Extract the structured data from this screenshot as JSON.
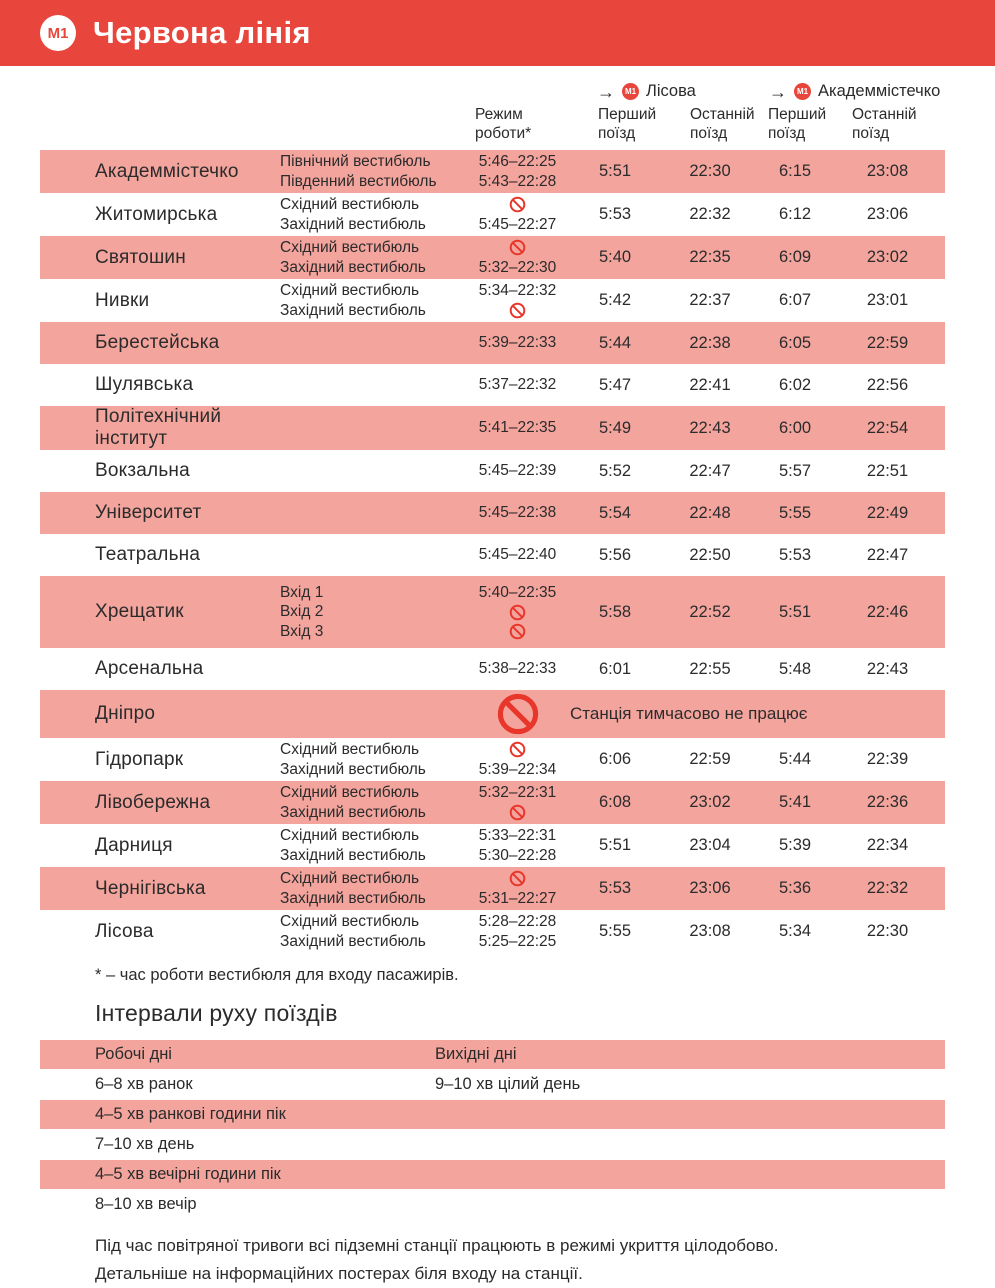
{
  "header": {
    "line_badge": "M1",
    "title": "Червона лінія"
  },
  "colors": {
    "accent_red": "#E8463C",
    "row_pink": "#F3A49D",
    "icon_red": "#E8362B",
    "text": "#2B2B2B"
  },
  "table": {
    "col_headers": {
      "rezhym": "Режим\nроботи*",
      "first": "Перший\nпоїзд",
      "last": "Останній\nпоїзд",
      "dir1": {
        "badge": "M1",
        "label": "Лісова",
        "arrow": "→"
      },
      "dir2": {
        "badge": "M1",
        "label": "Академмістечко",
        "arrow": "→"
      }
    },
    "closed_note": "Станція тимчасово не працює",
    "rows": [
      {
        "station": "Академмістечко",
        "highlight": true,
        "vestibules": [
          {
            "name": "Північний вестибюль",
            "time": "5:46–22:25"
          },
          {
            "name": "Південний вестибюль",
            "time": "5:43–22:28"
          }
        ],
        "times": [
          "5:51",
          "22:30",
          "6:15",
          "23:08"
        ]
      },
      {
        "station": "Житомирська",
        "highlight": false,
        "vestibules": [
          {
            "name": "Східний вестибюль",
            "time": null
          },
          {
            "name": "Західний вестибюль",
            "time": "5:45–22:27"
          }
        ],
        "times": [
          "5:53",
          "22:32",
          "6:12",
          "23:06"
        ]
      },
      {
        "station": "Святошин",
        "highlight": true,
        "vestibules": [
          {
            "name": "Східний вестибюль",
            "time": null
          },
          {
            "name": "Західний вестибюль",
            "time": "5:32–22:30"
          }
        ],
        "times": [
          "5:40",
          "22:35",
          "6:09",
          "23:02"
        ]
      },
      {
        "station": "Нивки",
        "highlight": false,
        "vestibules": [
          {
            "name": "Східний вестибюль",
            "time": "5:34–22:32"
          },
          {
            "name": "Західний вестибюль",
            "time": null
          }
        ],
        "times": [
          "5:42",
          "22:37",
          "6:07",
          "23:01"
        ]
      },
      {
        "station": "Берестейська",
        "highlight": true,
        "vestibules": [],
        "rezhym": "5:39–22:33",
        "times": [
          "5:44",
          "22:38",
          "6:05",
          "22:59"
        ]
      },
      {
        "station": "Шулявська",
        "highlight": false,
        "vestibules": [],
        "rezhym": "5:37–22:32",
        "times": [
          "5:47",
          "22:41",
          "6:02",
          "22:56"
        ]
      },
      {
        "station": "Політехнічний інститут",
        "highlight": true,
        "vestibules": [],
        "rezhym": "5:41–22:35",
        "times": [
          "5:49",
          "22:43",
          "6:00",
          "22:54"
        ]
      },
      {
        "station": "Вокзальна",
        "highlight": false,
        "vestibules": [],
        "rezhym": "5:45–22:39",
        "times": [
          "5:52",
          "22:47",
          "5:57",
          "22:51"
        ]
      },
      {
        "station": "Університет",
        "highlight": true,
        "vestibules": [],
        "rezhym": "5:45–22:38",
        "times": [
          "5:54",
          "22:48",
          "5:55",
          "22:49"
        ]
      },
      {
        "station": "Театральна",
        "highlight": false,
        "vestibules": [],
        "rezhym": "5:45–22:40",
        "times": [
          "5:56",
          "22:50",
          "5:53",
          "22:47"
        ]
      },
      {
        "station": "Хрещатик",
        "highlight": true,
        "size": "tall",
        "vestibules": [
          {
            "name": "Вхід 1",
            "time": "5:40–22:35"
          },
          {
            "name": "Вхід 2",
            "time": null
          },
          {
            "name": "Вхід 3",
            "time": null
          }
        ],
        "times": [
          "5:58",
          "22:52",
          "5:51",
          "22:46"
        ]
      },
      {
        "station": "Арсенальна",
        "highlight": false,
        "vestibules": [],
        "rezhym": "5:38–22:33",
        "times": [
          "6:01",
          "22:55",
          "5:48",
          "22:43"
        ]
      },
      {
        "station": "Дніпро",
        "highlight": true,
        "size": "mid",
        "closed_station": true
      },
      {
        "station": "Гідропарк",
        "highlight": false,
        "vestibules": [
          {
            "name": "Східний вестибюль",
            "time": null
          },
          {
            "name": "Західний вестибюль",
            "time": "5:39–22:34"
          }
        ],
        "times": [
          "6:06",
          "22:59",
          "5:44",
          "22:39"
        ]
      },
      {
        "station": "Лівобережна",
        "highlight": true,
        "vestibules": [
          {
            "name": "Східний вестибюль",
            "time": "5:32–22:31"
          },
          {
            "name": "Західний вестибюль",
            "time": null
          }
        ],
        "times": [
          "6:08",
          "23:02",
          "5:41",
          "22:36"
        ]
      },
      {
        "station": "Дарниця",
        "highlight": false,
        "vestibules": [
          {
            "name": "Східний вестибюль",
            "time": "5:33–22:31"
          },
          {
            "name": "Західний вестибюль",
            "time": "5:30–22:28"
          }
        ],
        "times": [
          "5:51",
          "23:04",
          "5:39",
          "22:34"
        ]
      },
      {
        "station": "Чернігівська",
        "highlight": true,
        "vestibules": [
          {
            "name": "Східний вестибюль",
            "time": null
          },
          {
            "name": "Західний вестибюль",
            "time": "5:31–22:27"
          }
        ],
        "times": [
          "5:53",
          "23:06",
          "5:36",
          "22:32"
        ]
      },
      {
        "station": "Лісова",
        "highlight": false,
        "vestibules": [
          {
            "name": "Східний вестибюль",
            "time": "5:28–22:28"
          },
          {
            "name": "Західний вестибюль",
            "time": "5:25–22:25"
          }
        ],
        "times": [
          "5:55",
          "23:08",
          "5:34",
          "22:30"
        ]
      }
    ]
  },
  "footnote": "* – час роботи вестибюля для входу пасажирів.",
  "intervals": {
    "title": "Інтервали руху поїздів",
    "rows": [
      {
        "left": "Робочі дні",
        "right": "Вихідні дні",
        "highlight": true
      },
      {
        "left": "6–8 хв ранок",
        "right": "9–10 хв цілий день",
        "highlight": false
      },
      {
        "left": "4–5 хв ранкові години пік",
        "right": "",
        "highlight": true
      },
      {
        "left": "7–10 хв день",
        "right": "",
        "highlight": false
      },
      {
        "left": "4–5 хв вечірні години пік",
        "right": "",
        "highlight": true
      },
      {
        "left": "8–10 хв вечір",
        "right": "",
        "highlight": false
      }
    ]
  },
  "footer": {
    "line1": "Під час повітряної тривоги всі підземні станції працюють в режимі укриття цілодобово.",
    "line2": "Детальніше на інформаційних постерах біля входу на станції."
  }
}
